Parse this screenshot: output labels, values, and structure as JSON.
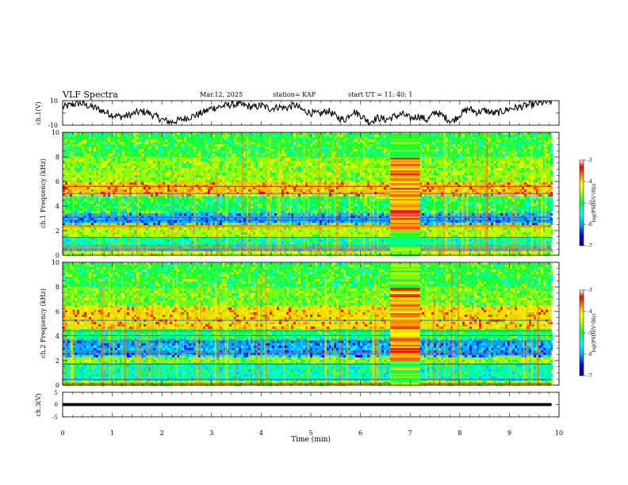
{
  "header": {
    "title": "VLF Spectra",
    "date": "Mar.12, 2025",
    "station": "station= KAP",
    "start_ut": "start UT =  11: 40: 1"
  },
  "chart_data": [
    {
      "type": "line",
      "panel": "ch1-waveform",
      "ylabel": "ch.1(V)",
      "ylim": [
        -10,
        10
      ],
      "y_tick_labels": [
        "10",
        "-10"
      ],
      "xlim": [
        0,
        10
      ],
      "x_end": 9.85,
      "series": [
        {
          "values": [
            4.5,
            6.5,
            8.0,
            6.0,
            4.0,
            1.0,
            -1.5,
            -3.0,
            -2.0,
            0.5,
            1.0,
            -2.0,
            -5.5,
            -7.5,
            -6.0,
            -4.0,
            -2.0,
            0.5,
            4.0,
            5.0,
            6.5,
            7.0,
            6.0,
            4.5,
            6.0,
            3.5,
            5.0,
            4.0,
            6.5,
            2.0,
            0.0,
            -1.0,
            2.0,
            -3.0,
            -6.0,
            1.5,
            -2.0,
            -7.5,
            -4.0,
            -5.5,
            -3.0,
            -1.0,
            -4.5,
            -2.5,
            -6.0,
            1.0,
            -3.0,
            -7.0,
            -1.0,
            3.5,
            0.5,
            2.0,
            -0.5,
            1.0,
            3.5,
            4.5,
            6.0,
            7.0,
            8.5,
            9.0
          ]
        }
      ]
    },
    {
      "type": "heatmap",
      "panel": "ch1-spectrogram",
      "ylabel": "ch.1 Frequency (kHz)",
      "ylim": [
        0,
        10
      ],
      "y_ticks": [
        0,
        2,
        4,
        6,
        8,
        10
      ],
      "xlim": [
        0,
        10
      ],
      "x_end": 9.85,
      "colorbar": {
        "label": "log(PSD)(V²/Hz)",
        "range": [
          -7,
          -3
        ],
        "ticks": [
          -3,
          -4,
          -5,
          -6,
          -7
        ]
      },
      "interference_interval_min": [
        6.6,
        7.2
      ],
      "bands": [
        {
          "f": [
            0.0,
            0.5
          ],
          "level": -4.4
        },
        {
          "f": [
            0.5,
            1.5
          ],
          "level": -5.3
        },
        {
          "f": [
            1.5,
            2.6
          ],
          "level": -4.5
        },
        {
          "f": [
            2.6,
            3.6
          ],
          "level": -5.9
        },
        {
          "f": [
            3.6,
            4.8
          ],
          "level": -5.0
        },
        {
          "f": [
            4.8,
            6.0
          ],
          "level": -3.9
        },
        {
          "f": [
            6.0,
            8.0
          ],
          "level": -4.6
        },
        {
          "f": [
            8.0,
            10.0
          ],
          "level": -4.9
        }
      ]
    },
    {
      "type": "heatmap",
      "panel": "ch2-spectrogram",
      "ylabel": "ch.2 Frequency (kHz)",
      "ylim": [
        0,
        10
      ],
      "y_ticks": [
        0,
        2,
        4,
        6,
        8,
        10
      ],
      "xlim": [
        0,
        10
      ],
      "x_end": 9.85,
      "colorbar": {
        "label": "log(PSD)(V²/Hz)",
        "range": [
          -7,
          -3
        ],
        "ticks": [
          -3,
          -4,
          -5,
          -6,
          -7
        ]
      },
      "interference_interval_min": [
        6.6,
        7.2
      ],
      "bands": [
        {
          "f": [
            0.0,
            0.5
          ],
          "level": -4.5
        },
        {
          "f": [
            0.5,
            1.8
          ],
          "level": -5.3
        },
        {
          "f": [
            1.8,
            2.4
          ],
          "level": -4.6
        },
        {
          "f": [
            2.4,
            3.8
          ],
          "level": -6.0
        },
        {
          "f": [
            3.8,
            4.6
          ],
          "level": -5.1
        },
        {
          "f": [
            4.6,
            6.5
          ],
          "level": -4.0
        },
        {
          "f": [
            6.5,
            8.0
          ],
          "level": -4.7
        },
        {
          "f": [
            8.0,
            10.0
          ],
          "level": -4.9
        }
      ]
    },
    {
      "type": "line",
      "panel": "ch3-waveform",
      "ylabel": "ch.3(V)",
      "ylim": [
        -5,
        5
      ],
      "y_tick_labels": [
        "5",
        "0",
        "-5"
      ],
      "xlim": [
        0,
        10
      ],
      "x_end": 9.85,
      "series": [
        {
          "values": [
            0.0,
            0.0
          ]
        }
      ],
      "band_halfwidth": 0.6
    }
  ],
  "x_axis": {
    "label": "Time (min)",
    "ticks": [
      0,
      1,
      2,
      3,
      4,
      5,
      6,
      7,
      8,
      9,
      10
    ]
  },
  "colors": {
    "scale": [
      "#000080",
      "#0000ff",
      "#00aaff",
      "#00ffff",
      "#00ff66",
      "#66ff00",
      "#ffff00",
      "#ff8800",
      "#ff0000",
      "#ffffff"
    ]
  }
}
